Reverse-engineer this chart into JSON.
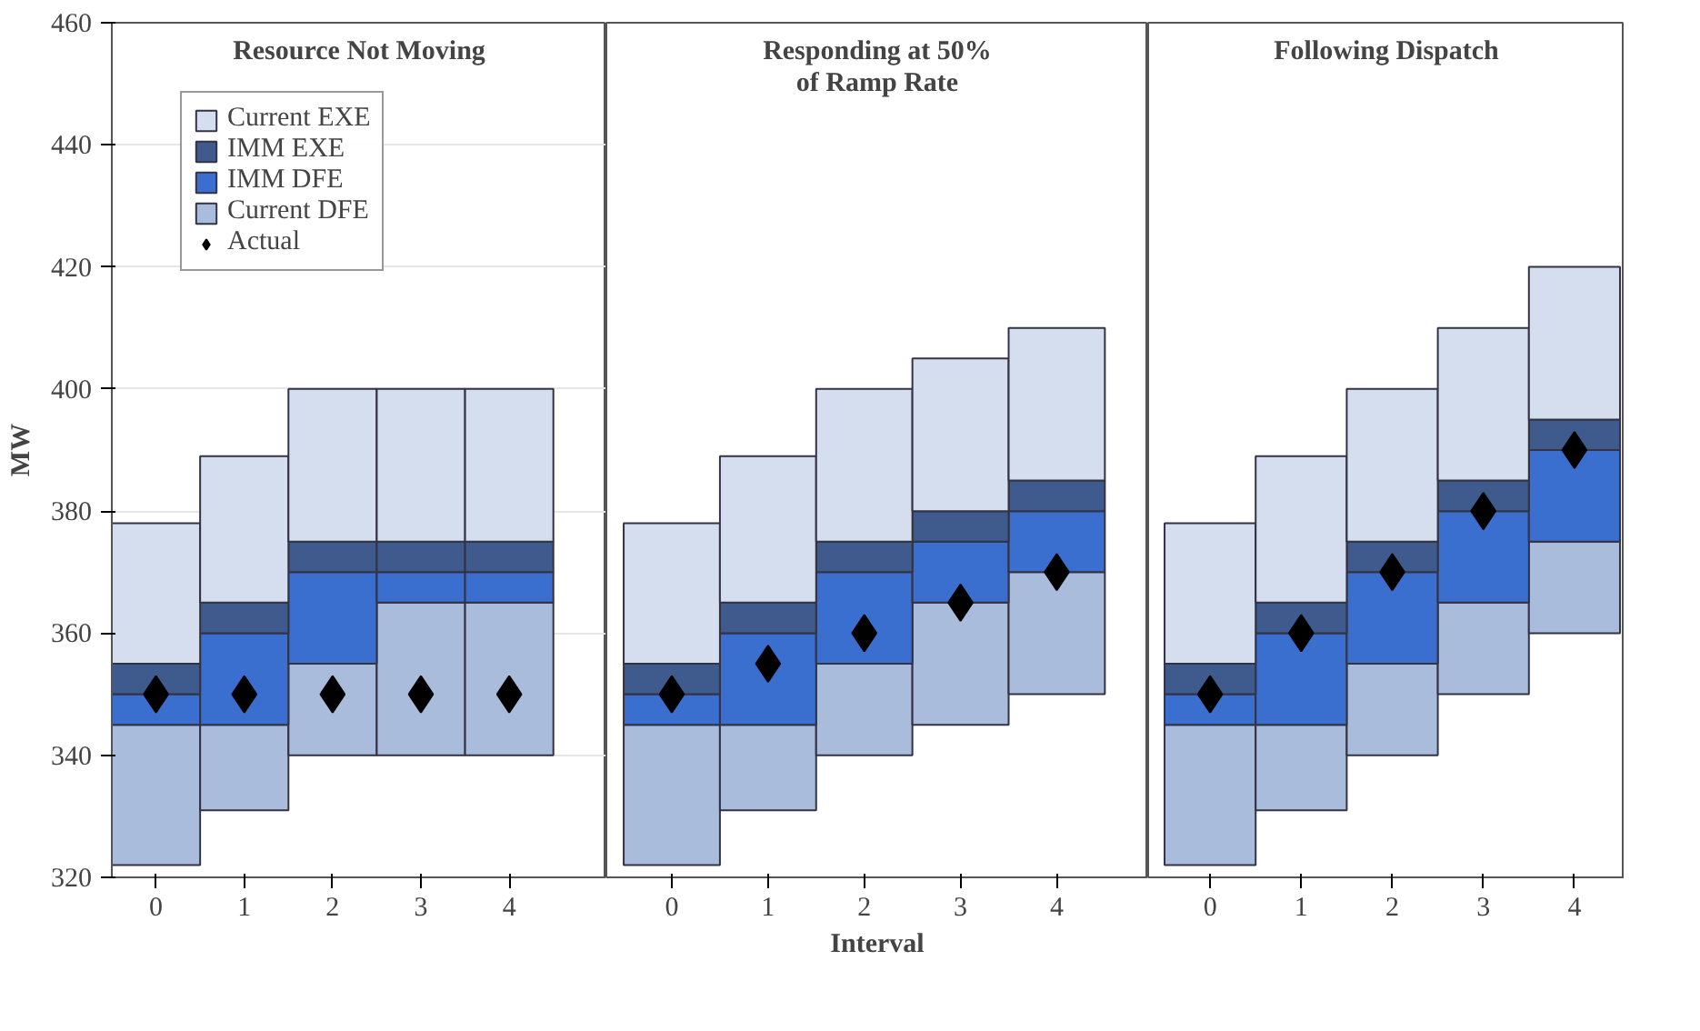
{
  "chart_data": [
    {
      "type": "bar",
      "title": "Resource Not Moving",
      "ylabel": "MW",
      "categories": [
        "0",
        "1",
        "2",
        "3",
        "4"
      ],
      "ylim": [
        320,
        460
      ],
      "yticks": [
        320,
        340,
        360,
        380,
        400,
        420,
        440,
        460
      ],
      "grid": "y",
      "legend": "top left",
      "series": [
        {
          "name": "Current DFE",
          "color": "#a9bcdc",
          "base": [
            322,
            331,
            340,
            340,
            340
          ],
          "values": [
            23,
            14,
            15,
            25,
            25
          ]
        },
        {
          "name": "IMM DFE",
          "color": "#3a6fd0",
          "base": [
            345,
            345,
            355,
            365,
            365
          ],
          "values": [
            5,
            15,
            15,
            5,
            5
          ]
        },
        {
          "name": "IMM EXE",
          "color": "#3f5a8c",
          "base": [
            350,
            360,
            370,
            370,
            370
          ],
          "values": [
            5,
            5,
            5,
            5,
            5
          ]
        },
        {
          "name": "Current EXE",
          "color": "#d5deef",
          "base": [
            355,
            365,
            375,
            375,
            375
          ],
          "values": [
            23,
            24,
            25,
            25,
            25
          ]
        },
        {
          "name": "Actual",
          "type": "scatter",
          "marker": "diamond",
          "color": "#000000",
          "x": [
            "0",
            "1",
            "2",
            "3",
            "4"
          ],
          "values": [
            350,
            350,
            350,
            350,
            350
          ]
        }
      ]
    },
    {
      "type": "bar",
      "title": "Responding at 50%\nof Ramp Rate",
      "xlabel": "Interval",
      "categories": [
        "0",
        "1",
        "2",
        "3",
        "4"
      ],
      "ylim": [
        320,
        460
      ],
      "tick_labels": "x",
      "grid": "y",
      "series": [
        {
          "color": "#a9bcdc",
          "base": [
            322,
            331,
            340,
            345,
            350
          ],
          "values": [
            23,
            14,
            15,
            20,
            20
          ]
        },
        {
          "color": "#3a6fd0",
          "base": [
            345,
            345,
            355,
            365,
            370
          ],
          "values": [
            5,
            15,
            15,
            10,
            10
          ]
        },
        {
          "color": "#3f5a8c",
          "base": [
            350,
            360,
            370,
            375,
            380
          ],
          "values": [
            5,
            5,
            5,
            5,
            5
          ]
        },
        {
          "color": "#d5deef",
          "base": [
            355,
            365,
            375,
            380,
            385
          ],
          "values": [
            23,
            24,
            25,
            25,
            25
          ]
        },
        {
          "type": "scatter",
          "marker": "diamond",
          "color": "#000000",
          "x": [
            "0",
            "1",
            "2",
            "3",
            "4"
          ],
          "values": [
            350,
            355,
            360,
            365,
            370
          ]
        }
      ]
    },
    {
      "type": "bar",
      "title": "Following Dispatch",
      "categories": [
        "0",
        "1",
        "2",
        "3",
        "4"
      ],
      "ylim": [
        320,
        460
      ],
      "tick_labels": "x",
      "grid": "y",
      "series": [
        {
          "color": "#a9bcdc",
          "base": [
            322,
            331,
            340,
            350,
            360
          ],
          "values": [
            23,
            14,
            15,
            15,
            15
          ]
        },
        {
          "color": "#3a6fd0",
          "base": [
            345,
            345,
            355,
            365,
            375
          ],
          "values": [
            5,
            15,
            15,
            15,
            15
          ]
        },
        {
          "color": "#3f5a8c",
          "base": [
            350,
            360,
            370,
            380,
            390
          ],
          "values": [
            5,
            5,
            5,
            5,
            5
          ]
        },
        {
          "color": "#d5deef",
          "base": [
            355,
            365,
            375,
            385,
            395
          ],
          "values": [
            23,
            24,
            25,
            25,
            25
          ]
        },
        {
          "type": "scatter",
          "marker": "diamond",
          "color": "#000000",
          "x": [
            "0",
            "1",
            "2",
            "3",
            "4"
          ],
          "values": [
            350,
            360,
            370,
            380,
            390
          ]
        }
      ]
    }
  ]
}
